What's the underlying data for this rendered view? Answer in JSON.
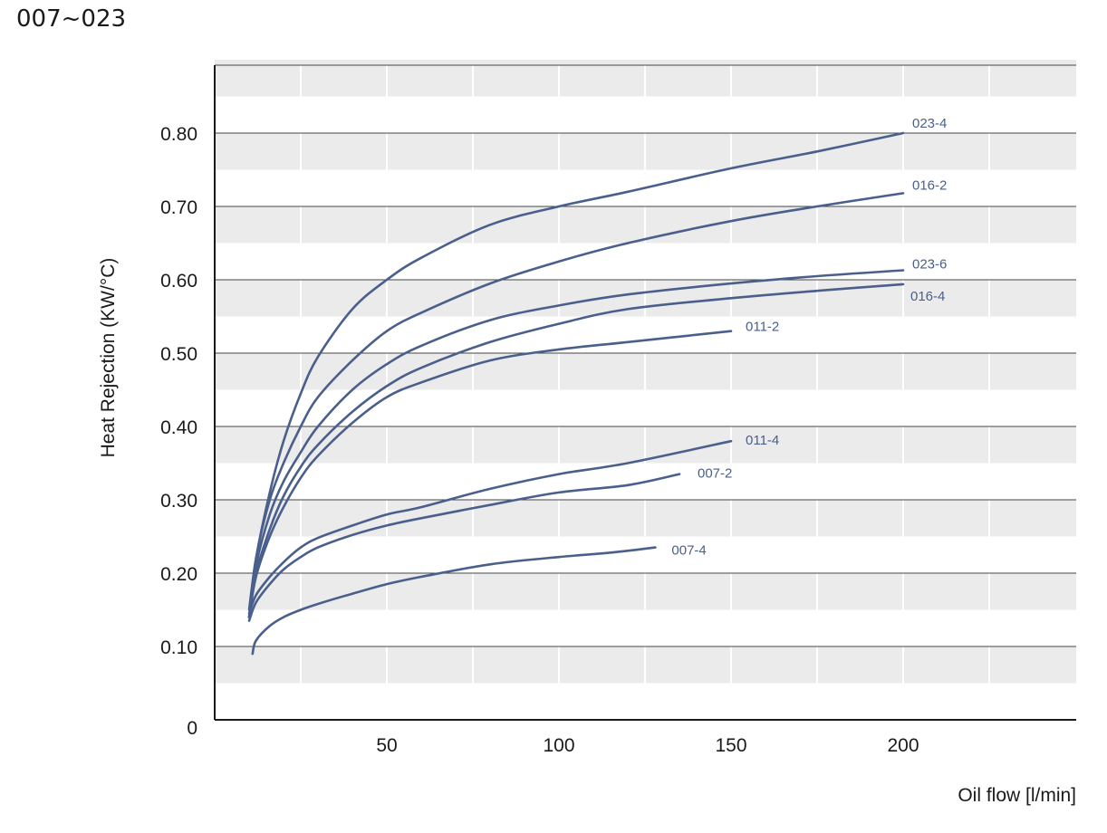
{
  "page": {
    "title": "007~023"
  },
  "chart_data": {
    "type": "line",
    "title": "",
    "xlabel": "Oil flow [l/min]",
    "ylabel": "Heat Rejection (KW/°C)",
    "xlim": [
      0,
      250
    ],
    "ylim": [
      0,
      0.9
    ],
    "x_ticks": [
      50,
      100,
      150,
      200
    ],
    "y_ticks": [
      0.1,
      0.2,
      0.3,
      0.4,
      0.5,
      0.6,
      0.7,
      0.8
    ],
    "y_tick_labels": [
      "0.10",
      "0.20",
      "0.30",
      "0.40",
      "0.50",
      "0.60",
      "0.70",
      "0.80"
    ],
    "origin_label": "0",
    "grid": true,
    "line_color": "#4a5f8c",
    "series": [
      {
        "name": "023-4",
        "x": [
          10,
          12,
          16,
          20,
          25,
          30,
          40,
          50,
          60,
          80,
          100,
          120,
          150,
          175,
          200
        ],
        "y": [
          0.15,
          0.22,
          0.31,
          0.38,
          0.445,
          0.495,
          0.56,
          0.6,
          0.63,
          0.675,
          0.7,
          0.72,
          0.752,
          0.775,
          0.8
        ]
      },
      {
        "name": "016-2",
        "x": [
          10,
          12,
          16,
          20,
          25,
          30,
          40,
          50,
          60,
          80,
          100,
          120,
          150,
          175,
          200
        ],
        "y": [
          0.14,
          0.22,
          0.3,
          0.35,
          0.4,
          0.44,
          0.49,
          0.53,
          0.555,
          0.595,
          0.625,
          0.65,
          0.68,
          0.7,
          0.718
        ]
      },
      {
        "name": "023-6",
        "x": [
          10,
          12,
          16,
          20,
          25,
          30,
          40,
          50,
          60,
          80,
          100,
          120,
          150,
          175,
          200
        ],
        "y": [
          0.14,
          0.21,
          0.28,
          0.325,
          0.365,
          0.4,
          0.45,
          0.485,
          0.51,
          0.545,
          0.565,
          0.58,
          0.595,
          0.605,
          0.613
        ]
      },
      {
        "name": "016-4",
        "x": [
          10,
          12,
          16,
          20,
          25,
          30,
          40,
          50,
          60,
          80,
          100,
          120,
          150,
          175,
          200
        ],
        "y": [
          0.14,
          0.2,
          0.26,
          0.305,
          0.345,
          0.375,
          0.42,
          0.455,
          0.48,
          0.515,
          0.54,
          0.56,
          0.575,
          0.585,
          0.594
        ]
      },
      {
        "name": "011-2",
        "x": [
          10,
          12,
          16,
          20,
          25,
          30,
          40,
          50,
          60,
          80,
          100,
          120,
          150
        ],
        "y": [
          0.14,
          0.195,
          0.25,
          0.29,
          0.33,
          0.36,
          0.405,
          0.44,
          0.46,
          0.49,
          0.505,
          0.515,
          0.53
        ]
      },
      {
        "name": "011-4",
        "x": [
          10,
          12,
          16,
          20,
          25,
          30,
          40,
          50,
          60,
          80,
          100,
          120,
          150
        ],
        "y": [
          0.145,
          0.17,
          0.195,
          0.215,
          0.235,
          0.248,
          0.265,
          0.28,
          0.29,
          0.315,
          0.335,
          0.35,
          0.38
        ]
      },
      {
        "name": "007-2",
        "x": [
          10,
          12,
          16,
          20,
          25,
          30,
          40,
          50,
          60,
          80,
          100,
          120,
          135
        ],
        "y": [
          0.135,
          0.16,
          0.185,
          0.205,
          0.222,
          0.235,
          0.252,
          0.265,
          0.275,
          0.293,
          0.31,
          0.32,
          0.335
        ]
      },
      {
        "name": "007-4",
        "x": [
          11,
          12,
          16,
          20,
          25,
          30,
          40,
          50,
          60,
          80,
          100,
          115,
          128
        ],
        "y": [
          0.09,
          0.108,
          0.128,
          0.14,
          0.15,
          0.158,
          0.172,
          0.185,
          0.195,
          0.212,
          0.222,
          0.228,
          0.235
        ]
      }
    ]
  }
}
